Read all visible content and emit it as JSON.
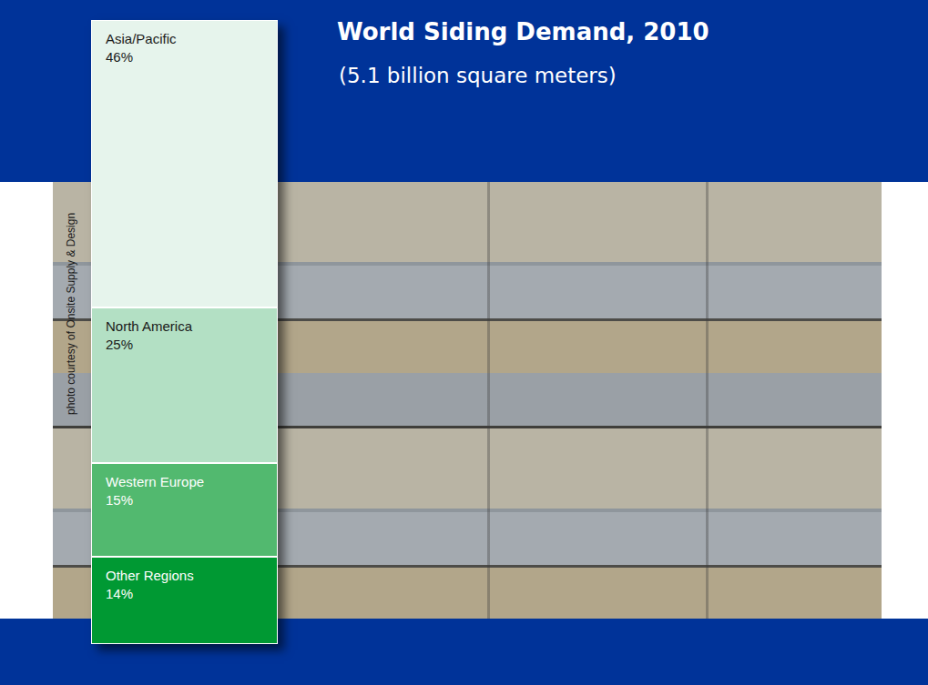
{
  "chart_data": {
    "type": "bar",
    "title": "World Siding Demand, 2010",
    "subtitle": "(5.1 billion square meters)",
    "annotations": [
      "photo courtesy of Onsite Supply & Design"
    ],
    "categories": [
      null
    ],
    "stacked": true,
    "data_labels": true,
    "tick_labels": false,
    "grid": false,
    "ylim": [
      0,
      100
    ],
    "series": [
      {
        "name": "Other Regions",
        "color": "#009933",
        "values": [
          14
        ],
        "value_labels": [
          "14%"
        ]
      },
      {
        "name": "Western Europe",
        "color": "#52b96f",
        "values": [
          15
        ],
        "value_labels": [
          "15%"
        ]
      },
      {
        "name": "North America",
        "color": "#b3e0c4",
        "values": [
          25
        ],
        "value_labels": [
          "25%"
        ]
      },
      {
        "name": "Asia/Pacific",
        "color": "#e6f4ec",
        "values": [
          46
        ],
        "value_labels": [
          "46%"
        ]
      }
    ]
  }
}
